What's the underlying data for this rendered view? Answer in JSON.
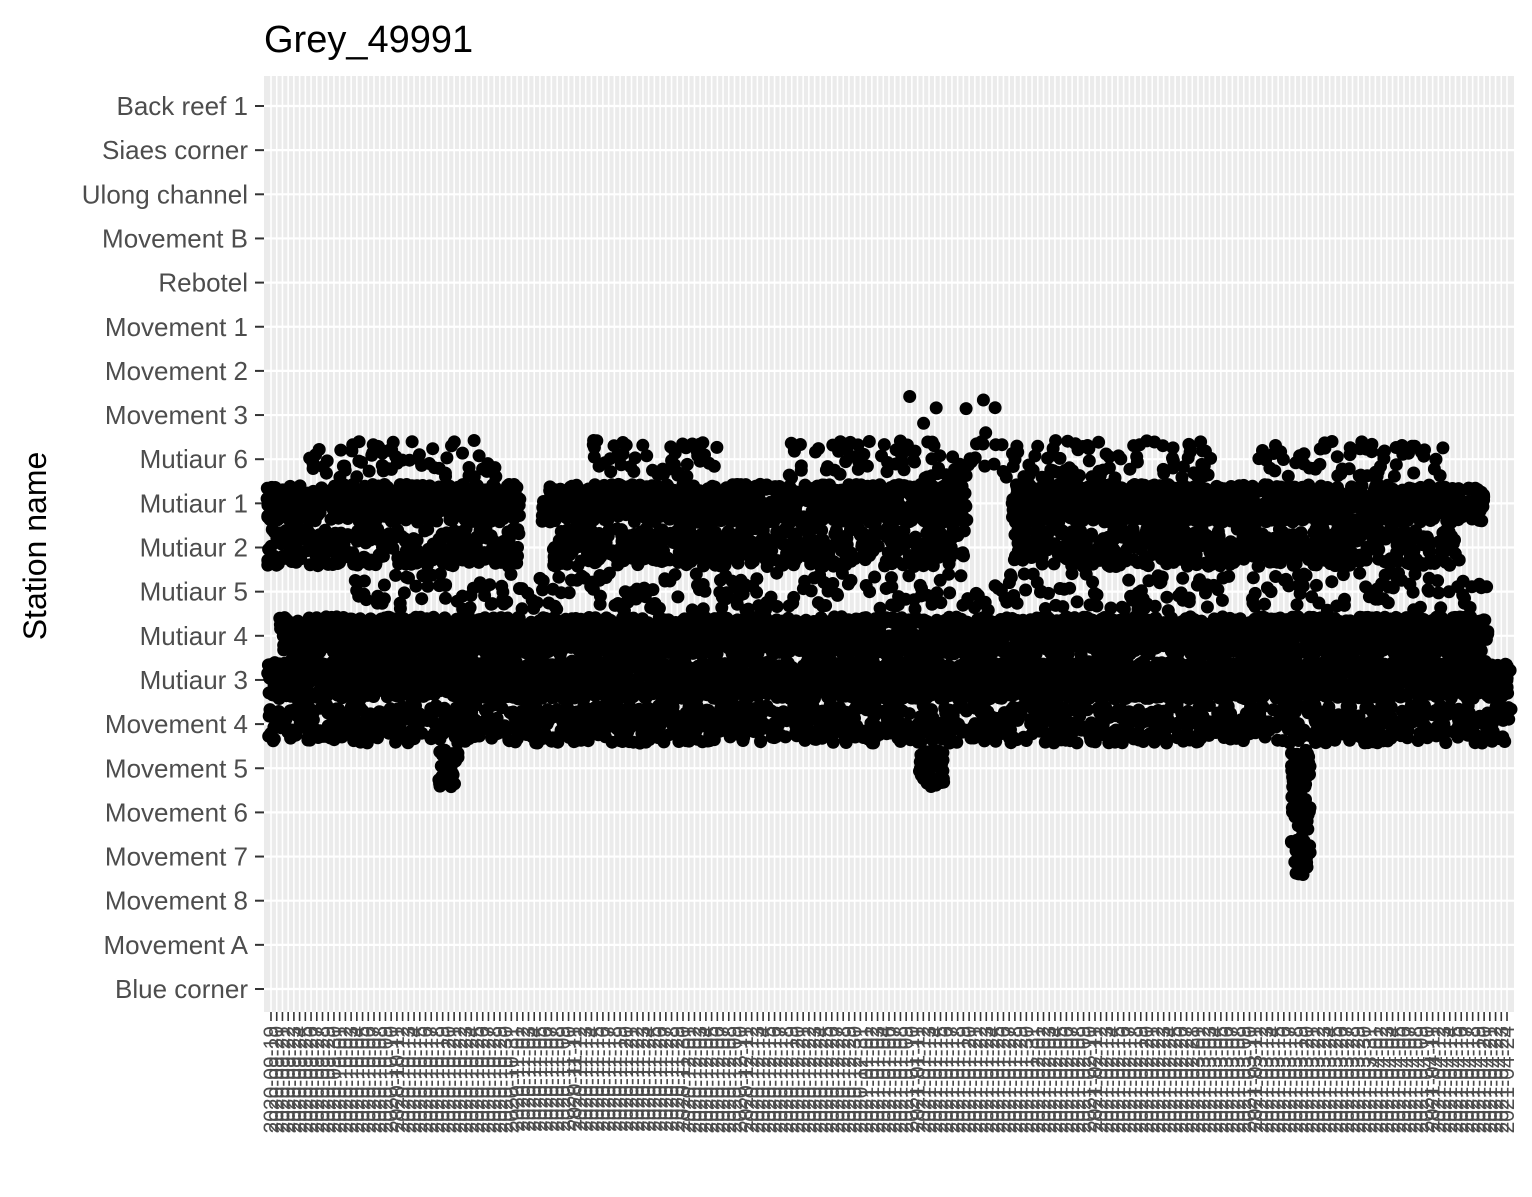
{
  "chart_data": {
    "type": "scatter",
    "title": "Grey_49991",
    "xlabel": "",
    "ylabel": "Station name",
    "x_axis": {
      "kind": "date",
      "range": [
        "2020-09-19",
        "2021-04-24"
      ],
      "tick_label_sample": "2020-09-19",
      "tick_rotation_deg": 90,
      "ticks_illegible": true
    },
    "categories": [
      "Back reef 1",
      "Siaes corner",
      "Ulong channel",
      "Movement B",
      "Rebotel",
      "Movement 1",
      "Movement 2",
      "Movement 3",
      "Mutiaur 6",
      "Mutiaur 1",
      "Mutiaur 2",
      "Mutiaur 5",
      "Mutiaur 4",
      "Mutiaur 3",
      "Movement 4",
      "Movement 5",
      "Movement 6",
      "Movement 7",
      "Movement 8",
      "Movement A",
      "Blue corner"
    ],
    "grid": true,
    "legend": "none",
    "point_color": "#000000",
    "panel_background": "#ebebeb",
    "gridline_color": "#ffffff",
    "n_dates": 217,
    "detections": [
      {
        "station": "Mutiaur 3",
        "coverage": [
          [
            0.0,
            1.0
          ]
        ],
        "density": 0.95
      },
      {
        "station": "Mutiaur 4",
        "coverage": [
          [
            0.01,
            0.2
          ],
          [
            0.21,
            0.98
          ]
        ],
        "density": 0.9
      },
      {
        "station": "Mutiaur 1",
        "coverage": [
          [
            0.0,
            0.2
          ],
          [
            0.22,
            0.38
          ],
          [
            0.38,
            0.56
          ],
          [
            0.6,
            0.98
          ]
        ],
        "density": 0.8
      },
      {
        "station": "Mutiaur 2",
        "coverage": [
          [
            0.0,
            0.2
          ],
          [
            0.23,
            0.38
          ],
          [
            0.38,
            0.56
          ],
          [
            0.6,
            0.96
          ]
        ],
        "density": 0.6
      },
      {
        "station": "Movement 4",
        "coverage": [
          [
            0.0,
            0.12
          ],
          [
            0.13,
            0.56
          ],
          [
            0.57,
            1.0
          ]
        ],
        "density": 0.6
      },
      {
        "station": "Mutiaur 5",
        "coverage": [
          [
            0.07,
            0.98
          ]
        ],
        "density": 0.25
      },
      {
        "station": "Mutiaur 6",
        "coverage": [
          [
            0.03,
            0.18
          ],
          [
            0.26,
            0.36
          ],
          [
            0.42,
            0.76
          ],
          [
            0.8,
            0.95
          ]
        ],
        "density": 0.3
      },
      {
        "station": "Movement 3",
        "coverage": [
          [
            0.5,
            0.65
          ]
        ],
        "density": 0.05
      },
      {
        "station": "Movement 5",
        "coverage": [
          [
            0.14,
            0.15
          ],
          [
            0.53,
            0.54
          ],
          [
            0.83,
            0.84
          ]
        ],
        "density": 1.0
      },
      {
        "station": "Movement 6",
        "coverage": [
          [
            0.83,
            0.84
          ]
        ],
        "density": 1.0
      },
      {
        "station": "Movement 7",
        "coverage": [
          [
            0.83,
            0.84
          ]
        ],
        "density": 1.0
      }
    ]
  }
}
